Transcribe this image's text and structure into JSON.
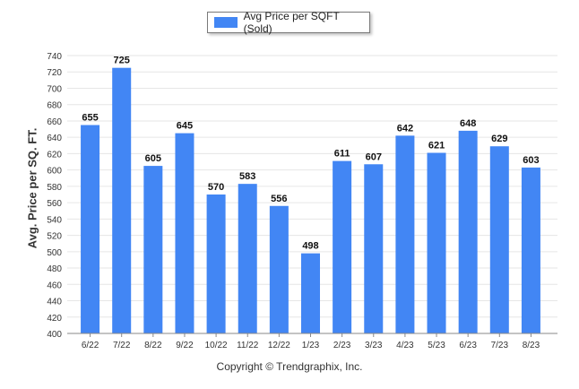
{
  "legend": {
    "label": "Avg Price per SQFT (Sold)"
  },
  "footer": {
    "copyright": "Copyright © Trendgraphix, Inc."
  },
  "colors": {
    "bar": "#4286f4",
    "grid": "#e6e6e6",
    "axis": "#888888"
  },
  "chart_data": {
    "type": "bar",
    "title": "",
    "xlabel": "",
    "ylabel": "Avg. Price per SQ. FT.",
    "ylim": [
      400,
      740
    ],
    "ytick_step": 20,
    "grid": true,
    "legend_position": "top-center",
    "categories": [
      "6/22",
      "7/22",
      "8/22",
      "9/22",
      "10/22",
      "11/22",
      "12/22",
      "1/23",
      "2/23",
      "3/23",
      "4/23",
      "5/23",
      "6/23",
      "7/23",
      "8/23"
    ],
    "series": [
      {
        "name": "Avg Price per SQFT (Sold)",
        "values": [
          655,
          725,
          605,
          645,
          570,
          583,
          556,
          498,
          611,
          607,
          642,
          621,
          648,
          629,
          603
        ]
      }
    ]
  }
}
